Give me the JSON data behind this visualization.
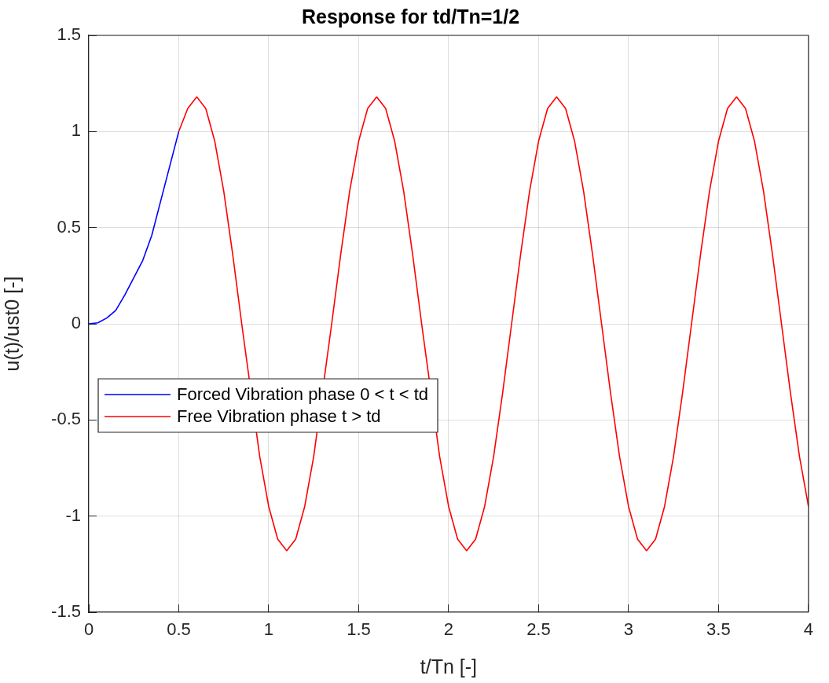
{
  "chart_data": {
    "type": "line",
    "title": "Response for td/Tn=1/2",
    "xlabel": "t/Tn [-]",
    "ylabel": "u(t)/ust0 [-]",
    "xlim": [
      0,
      4
    ],
    "xticks": [
      0,
      0.5,
      1,
      1.5,
      2,
      2.5,
      3,
      3.5,
      4
    ],
    "ylim": [
      -1.5,
      1.5
    ],
    "yticks": [
      -1.5,
      -1,
      -0.5,
      0,
      0.5,
      1,
      1.5
    ],
    "grid": true,
    "legend": "left",
    "marker": "none",
    "line_style": "solid",
    "series": [
      {
        "name": "Forced Vibration phase 0 < t < td",
        "color": "#0000ff",
        "x": [
          0,
          0.05,
          0.1,
          0.15,
          0.2,
          0.25,
          0.3,
          0.35,
          0.4,
          0.45,
          0.5
        ],
        "values": [
          0,
          0.005,
          0.03,
          0.07,
          0.15,
          0.24,
          0.33,
          0.46,
          0.64,
          0.82,
          1.0
        ]
      },
      {
        "name": "Free Vibration phase t > td",
        "color": "#ff0000",
        "x": [
          0.5,
          0.55,
          0.6,
          0.65,
          0.7,
          0.75,
          0.8,
          0.85,
          0.9,
          0.95,
          1,
          1.05,
          1.1,
          1.15,
          1.2,
          1.25,
          1.3,
          1.35,
          1.4,
          1.45,
          1.5,
          1.55,
          1.6,
          1.65,
          1.7,
          1.75,
          1.8,
          1.85,
          1.9,
          1.95,
          2,
          2.05,
          2.1,
          2.15,
          2.2,
          2.25,
          2.3,
          2.35,
          2.4,
          2.45,
          2.5,
          2.55,
          2.6,
          2.65,
          2.7,
          2.75,
          2.8,
          2.85,
          2.9,
          2.95,
          3,
          3.05,
          3.1,
          3.15,
          3.2,
          3.25,
          3.3,
          3.35,
          3.4,
          3.45,
          3.5,
          3.55,
          3.6,
          3.65,
          3.7,
          3.75,
          3.8,
          3.85,
          3.9,
          3.95,
          4
        ],
        "values": [
          1.0,
          1.12,
          1.18,
          1.12,
          0.95,
          0.69,
          0.36,
          0,
          null,
          -0.69,
          -0.95,
          -1.12,
          -1.18,
          -1.12,
          -0.95,
          -0.69,
          null,
          0,
          0.36,
          0.69,
          0.95,
          1.12,
          1.18,
          1.12,
          0.95,
          0.69,
          0.36,
          0,
          null,
          -0.69,
          -0.95,
          -1.12,
          -1.18,
          -1.12,
          -0.95,
          -0.69,
          -0.36,
          0,
          0.36,
          0.69,
          0.95,
          1.12,
          1.18,
          1.12,
          0.95,
          0.69,
          0.36,
          0,
          -0.36,
          -0.69,
          -0.95,
          -1.12,
          -1.18,
          -1.12,
          -0.95,
          -0.69,
          -0.36,
          0,
          0.36,
          0.69,
          0.95,
          1.12,
          1.18,
          1.12,
          0.95,
          0.69,
          0.36,
          0,
          -0.36,
          -0.69,
          -0.95
        ]
      }
    ]
  }
}
